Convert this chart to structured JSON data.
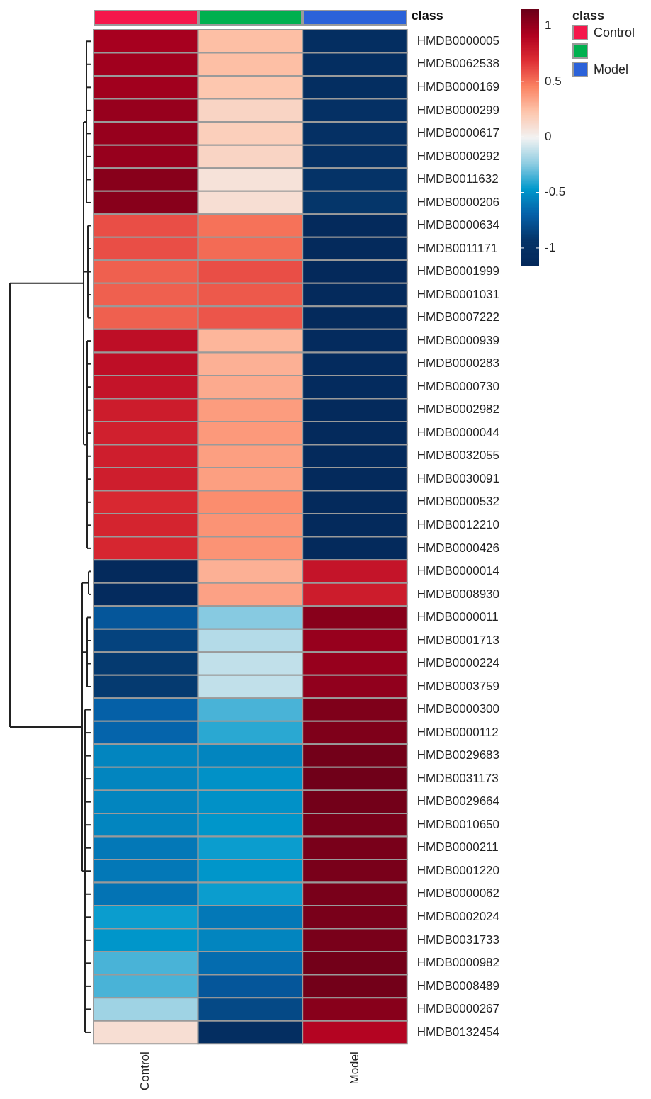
{
  "chart_data": {
    "type": "heatmap",
    "legend_title": "class",
    "categories": [
      "Control",
      null,
      "Model"
    ],
    "colors": [
      "#f5174b",
      "#00b04f",
      "#2b62d9"
    ],
    "y_categories": [
      "HMDB0000005",
      "HMDB0062538",
      "HMDB0000169",
      "HMDB0000299",
      "HMDB0000617",
      "HMDB0000292",
      "HMDB0011632",
      "HMDB0000206",
      "HMDB0000634",
      "HMDB0011171",
      "HMDB0001999",
      "HMDB0001031",
      "HMDB0007222",
      "HMDB0000939",
      "HMDB0000283",
      "HMDB0000730",
      "HMDB0002982",
      "HMDB0000044",
      "HMDB0032055",
      "HMDB0030091",
      "HMDB0000532",
      "HMDB0012210",
      "HMDB0000426",
      "HMDB0000014",
      "HMDB0008930",
      "HMDB0000011",
      "HMDB0001713",
      "HMDB0000224",
      "HMDB0003759",
      "HMDB0000300",
      "HMDB0000112",
      "HMDB0029683",
      "HMDB0031173",
      "HMDB0029664",
      "HMDB0010650",
      "HMDB0000211",
      "HMDB0001220",
      "HMDB0000062",
      "HMDB0002024",
      "HMDB0031733",
      "HMDB0000982",
      "HMDB0008489",
      "HMDB0000267",
      "HMDB0132454"
    ],
    "cells": [
      [
        0.95,
        0.25,
        -1.05
      ],
      [
        0.97,
        0.25,
        -1.05
      ],
      [
        0.97,
        0.22,
        -1.05
      ],
      [
        1.0,
        0.15,
        -1.0
      ],
      [
        1.0,
        0.18,
        -1.0
      ],
      [
        1.0,
        0.15,
        -1.0
      ],
      [
        1.05,
        0.08,
        -0.95
      ],
      [
        1.05,
        0.1,
        -0.92
      ],
      [
        0.6,
        0.5,
        -1.12
      ],
      [
        0.6,
        0.52,
        -1.12
      ],
      [
        0.55,
        0.6,
        -1.15
      ],
      [
        0.55,
        0.57,
        -1.13
      ],
      [
        0.55,
        0.58,
        -1.13
      ],
      [
        0.85,
        0.28,
        -1.1
      ],
      [
        0.85,
        0.3,
        -1.1
      ],
      [
        0.82,
        0.32,
        -1.1
      ],
      [
        0.78,
        0.37,
        -1.12
      ],
      [
        0.76,
        0.38,
        -1.12
      ],
      [
        0.77,
        0.36,
        -1.12
      ],
      [
        0.77,
        0.36,
        -1.12
      ],
      [
        0.72,
        0.42,
        -1.12
      ],
      [
        0.74,
        0.4,
        -1.12
      ],
      [
        0.73,
        0.4,
        -1.12
      ],
      [
        -1.12,
        0.3,
        0.82
      ],
      [
        -1.1,
        0.35,
        0.78
      ],
      [
        -0.75,
        -0.25,
        1.05
      ],
      [
        -0.85,
        -0.15,
        1.0
      ],
      [
        -0.9,
        -0.12,
        1.0
      ],
      [
        -0.9,
        -0.12,
        1.02
      ],
      [
        -0.7,
        -0.35,
        1.08
      ],
      [
        -0.68,
        -0.4,
        1.08
      ],
      [
        -0.55,
        -0.55,
        1.12
      ],
      [
        -0.55,
        -0.5,
        1.13
      ],
      [
        -0.55,
        -0.5,
        1.12
      ],
      [
        -0.55,
        -0.48,
        1.1
      ],
      [
        -0.6,
        -0.45,
        1.1
      ],
      [
        -0.6,
        -0.48,
        1.1
      ],
      [
        -0.62,
        -0.45,
        1.1
      ],
      [
        -0.45,
        -0.6,
        1.1
      ],
      [
        -0.48,
        -0.55,
        1.1
      ],
      [
        -0.35,
        -0.65,
        1.12
      ],
      [
        -0.35,
        -0.75,
        1.12
      ],
      [
        -0.2,
        -0.82,
        1.05
      ],
      [
        0.1,
        -1.05,
        0.9
      ]
    ],
    "clim": [
      -1.16,
      1.15
    ],
    "cticks": [
      -1,
      -0.5,
      0,
      0.5,
      1
    ]
  }
}
